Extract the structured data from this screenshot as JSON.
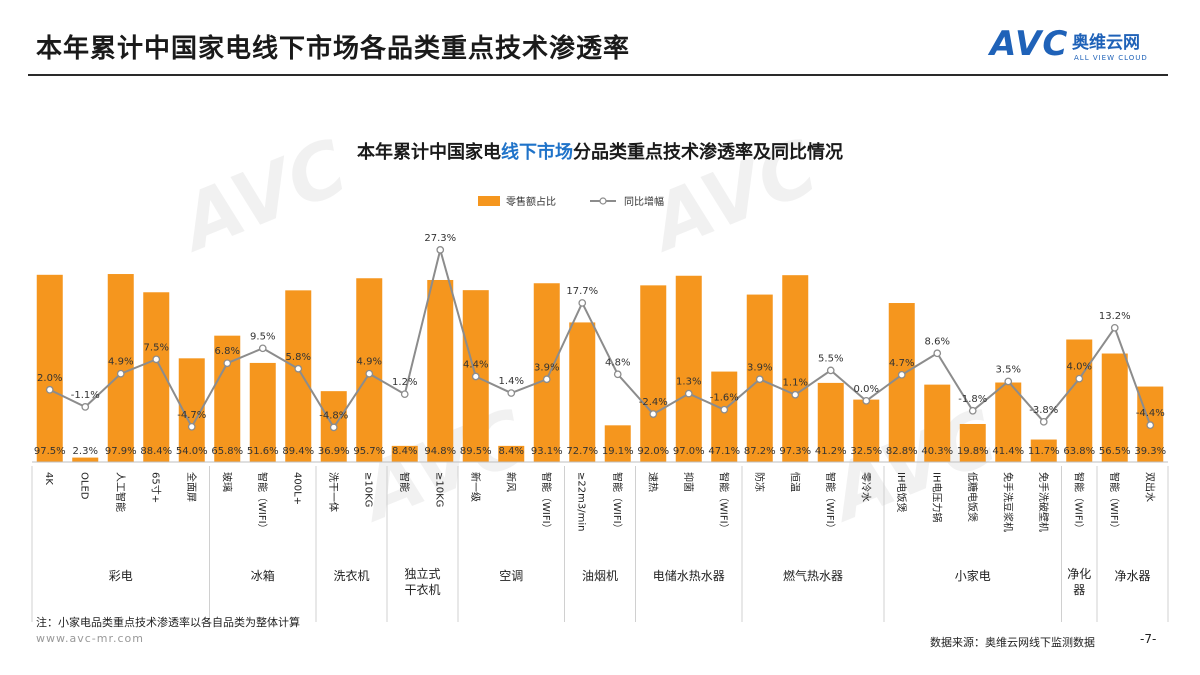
{
  "page": {
    "title": "本年累计中国家电线下市场各品类重点技术渗透率",
    "logo_mark": "AVC",
    "logo_cn": "奥维云网",
    "logo_en": "ALL VIEW CLOUD",
    "watermark": "AVC 奥维云网",
    "note": "注：小家电品类重点技术渗透率以各自品类为整体计算",
    "website": "www.avc-mr.com",
    "source": "数据来源：奥维云网线下监测数据",
    "page_number": "-7-"
  },
  "chart_data": {
    "type": "bar",
    "title_parts": [
      "本年累计中国家电",
      "线下市场",
      "分品类重点技术渗透率及同比情况"
    ],
    "colors": {
      "bar": "#f5961e",
      "line": "#8c8c8c",
      "highlight": "#1f73c9"
    },
    "legend_placement": "top-center",
    "bar_ylim": [
      0,
      100
    ],
    "line_ylim": [
      -6,
      28
    ],
    "series": [
      {
        "name": "零售额占比",
        "type": "bar"
      },
      {
        "name": "同比增幅",
        "type": "line"
      }
    ],
    "categories": [
      {
        "label": "4K",
        "group": "彩电",
        "share": 97.5,
        "share_text": "97.5%",
        "yoy": 2.0,
        "yoy_text": "2.0%"
      },
      {
        "label": "OLED",
        "group": "彩电",
        "share": 2.3,
        "share_text": "2.3%",
        "yoy": -1.1,
        "yoy_text": "-1.1%"
      },
      {
        "label": "人工智能",
        "group": "彩电",
        "share": 97.9,
        "share_text": "97.9%",
        "yoy": 4.9,
        "yoy_text": "4.9%"
      },
      {
        "label": "65寸+",
        "group": "彩电",
        "share": 88.4,
        "share_text": "88.4%",
        "yoy": 7.5,
        "yoy_text": "7.5%"
      },
      {
        "label": "全面屏",
        "group": "彩电",
        "share": 54.0,
        "share_text": "54.0%",
        "yoy": -4.7,
        "yoy_text": "-4.7%"
      },
      {
        "label": "玻璃",
        "group": "冰箱",
        "share": 65.8,
        "share_text": "65.8%",
        "yoy": 6.8,
        "yoy_text": "6.8%"
      },
      {
        "label": "智能（WIFI）",
        "group": "冰箱",
        "share": 51.6,
        "share_text": "51.6%",
        "yoy": 9.5,
        "yoy_text": "9.5%"
      },
      {
        "label": "400L+",
        "group": "冰箱",
        "share": 89.4,
        "share_text": "89.4%",
        "yoy": 5.8,
        "yoy_text": "5.8%"
      },
      {
        "label": "洗干一体",
        "group": "洗衣机",
        "share": 36.9,
        "share_text": "36.9%",
        "yoy": -4.8,
        "yoy_text": "-4.8%"
      },
      {
        "label": "≥10KG",
        "group": "洗衣机",
        "share": 95.7,
        "share_text": "95.7%",
        "yoy": 4.9,
        "yoy_text": "4.9%"
      },
      {
        "label": "智能",
        "group": "独立式干衣机",
        "share": 8.4,
        "share_text": "8.4%",
        "yoy": 1.2,
        "yoy_text": "1.2%"
      },
      {
        "label": "≥10KG",
        "group": "独立式干衣机",
        "share": 94.8,
        "share_text": "94.8%",
        "yoy": 27.3,
        "yoy_text": "27.3%"
      },
      {
        "label": "新一级",
        "group": "空调",
        "share": 89.5,
        "share_text": "89.5%",
        "yoy": 4.4,
        "yoy_text": "4.4%"
      },
      {
        "label": "新风",
        "group": "空调",
        "share": 8.4,
        "share_text": "8.4%",
        "yoy": 1.4,
        "yoy_text": "1.4%"
      },
      {
        "label": "智能（WIFI）",
        "group": "空调",
        "share": 93.1,
        "share_text": "93.1%",
        "yoy": 3.9,
        "yoy_text": "3.9%"
      },
      {
        "label": "≥22m3/min",
        "group": "油烟机",
        "share": 72.7,
        "share_text": "72.7%",
        "yoy": 17.7,
        "yoy_text": "17.7%"
      },
      {
        "label": "智能（WIFI）",
        "group": "油烟机",
        "share": 19.1,
        "share_text": "19.1%",
        "yoy": 4.8,
        "yoy_text": "4.8%"
      },
      {
        "label": "速热",
        "group": "电储水热水器",
        "share": 92.0,
        "share_text": "92.0%",
        "yoy": -2.4,
        "yoy_text": "-2.4%"
      },
      {
        "label": "抑菌",
        "group": "电储水热水器",
        "share": 97.0,
        "share_text": "97.0%",
        "yoy": 1.3,
        "yoy_text": "1.3%"
      },
      {
        "label": "智能（WIFI）",
        "group": "电储水热水器",
        "share": 47.1,
        "share_text": "47.1%",
        "yoy": -1.6,
        "yoy_text": "-1.6%"
      },
      {
        "label": "防冻",
        "group": "燃气热水器",
        "share": 87.2,
        "share_text": "87.2%",
        "yoy": 3.9,
        "yoy_text": "3.9%"
      },
      {
        "label": "恒温",
        "group": "燃气热水器",
        "share": 97.3,
        "share_text": "97.3%",
        "yoy": 1.1,
        "yoy_text": "1.1%"
      },
      {
        "label": "智能（WIFI）",
        "group": "燃气热水器",
        "share": 41.2,
        "share_text": "41.2%",
        "yoy": 5.5,
        "yoy_text": "5.5%"
      },
      {
        "label": "零冷水",
        "group": "燃气热水器",
        "share": 32.5,
        "share_text": "32.5%",
        "yoy": 0.0,
        "yoy_text": "0.0%"
      },
      {
        "label": "IH电饭煲",
        "group": "小家电",
        "share": 82.8,
        "share_text": "82.8%",
        "yoy": 4.7,
        "yoy_text": "4.7%"
      },
      {
        "label": "IH电压力锅",
        "group": "小家电",
        "share": 40.3,
        "share_text": "40.3%",
        "yoy": 8.6,
        "yoy_text": "8.6%"
      },
      {
        "label": "低糖电饭煲",
        "group": "小家电",
        "share": 19.8,
        "share_text": "19.8%",
        "yoy": -1.8,
        "yoy_text": "-1.8%"
      },
      {
        "label": "免手洗豆浆机",
        "group": "小家电",
        "share": 41.4,
        "share_text": "41.4%",
        "yoy": 3.5,
        "yoy_text": "3.5%"
      },
      {
        "label": "免手洗破壁机",
        "group": "小家电",
        "share": 11.7,
        "share_text": "11.7%",
        "yoy": -3.8,
        "yoy_text": "-3.8%"
      },
      {
        "label": "智能（WIFI）",
        "group": "净化器",
        "share": 63.8,
        "share_text": "63.8%",
        "yoy": 4.0,
        "yoy_text": "4.0%"
      },
      {
        "label": "智能（WIFI）",
        "group": "净水器",
        "share": 56.5,
        "share_text": "56.5%",
        "yoy": 13.2,
        "yoy_text": "13.2%"
      },
      {
        "label": "双出水",
        "group": "净水器",
        "share": 39.3,
        "share_text": "39.3%",
        "yoy": -4.4,
        "yoy_text": "-4.4%"
      }
    ],
    "groups": [
      {
        "name": "彩电",
        "lines": [
          "彩电"
        ],
        "count": 5
      },
      {
        "name": "冰箱",
        "lines": [
          "冰箱"
        ],
        "count": 3
      },
      {
        "name": "洗衣机",
        "lines": [
          "洗衣机"
        ],
        "count": 2
      },
      {
        "name": "独立式干衣机",
        "lines": [
          "独立式",
          "干衣机"
        ],
        "count": 2
      },
      {
        "name": "空调",
        "lines": [
          "空调"
        ],
        "count": 3
      },
      {
        "name": "油烟机",
        "lines": [
          "油烟机"
        ],
        "count": 2
      },
      {
        "name": "电储水热水器",
        "lines": [
          "电储水热水器"
        ],
        "count": 3
      },
      {
        "name": "燃气热水器",
        "lines": [
          "燃气热水器"
        ],
        "count": 4
      },
      {
        "name": "小家电",
        "lines": [
          "小家电"
        ],
        "count": 5
      },
      {
        "name": "净化器",
        "lines": [
          "净化",
          "器"
        ],
        "count": 1
      },
      {
        "name": "净水器",
        "lines": [
          "净水器"
        ],
        "count": 2
      }
    ]
  }
}
